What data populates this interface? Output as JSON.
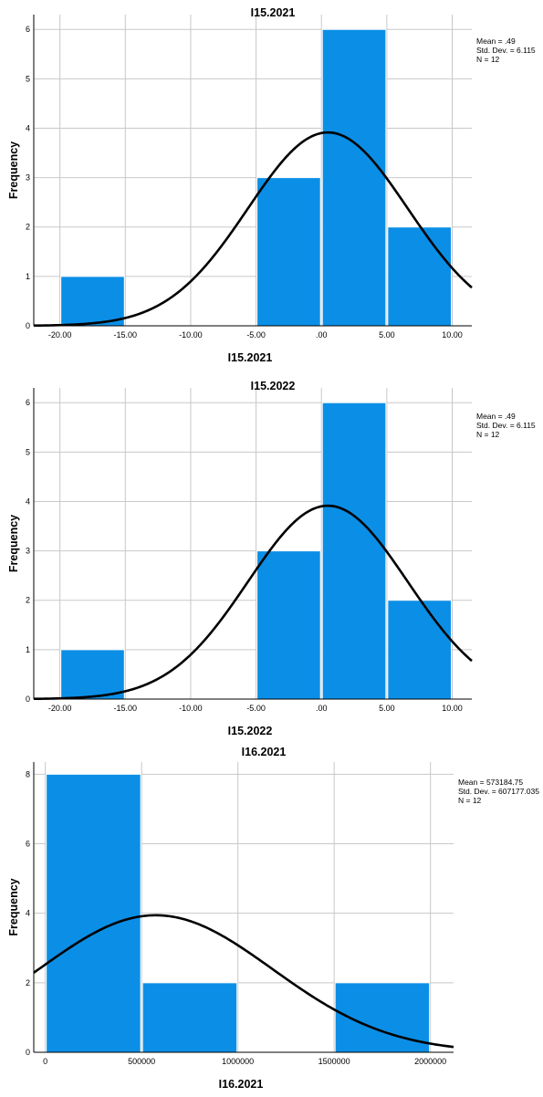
{
  "chart_data": [
    {
      "type": "bar",
      "title": "I15.2021",
      "xlabel": "I15.2021",
      "ylabel": "Frequency",
      "bins": [
        {
          "from": -20,
          "to": -15,
          "count": 1
        },
        {
          "from": -15,
          "to": -10,
          "count": 0
        },
        {
          "from": -10,
          "to": -5,
          "count": 0
        },
        {
          "from": -5,
          "to": 0,
          "count": 3
        },
        {
          "from": 0,
          "to": 5,
          "count": 6
        },
        {
          "from": 5,
          "to": 10,
          "count": 2
        }
      ],
      "xlim": [
        -22,
        11.5
      ],
      "ylim": [
        0,
        6.3
      ],
      "x_ticks": [
        {
          "value": -20,
          "label": "-20.00"
        },
        {
          "value": -15,
          "label": "-15.00"
        },
        {
          "value": -10,
          "label": "-10.00"
        },
        {
          "value": -5,
          "label": "-5.00"
        },
        {
          "value": 0,
          "label": ".00"
        },
        {
          "value": 5,
          "label": "5.00"
        },
        {
          "value": 10,
          "label": "10.00"
        }
      ],
      "y_ticks": [
        0,
        1,
        2,
        3,
        4,
        5,
        6
      ],
      "normal_curve": {
        "mean": 0.49,
        "sd": 6.115,
        "n": 12,
        "bin_width": 5
      },
      "stats": [
        "Mean = .49",
        "Std. Dev. = 6.115",
        "N = 12"
      ],
      "bar_color": "#0b8fe6",
      "grid": true
    },
    {
      "type": "bar",
      "title": "I15.2022",
      "xlabel": "I15.2022",
      "ylabel": "Frequency",
      "bins": [
        {
          "from": -20,
          "to": -15,
          "count": 1
        },
        {
          "from": -15,
          "to": -10,
          "count": 0
        },
        {
          "from": -10,
          "to": -5,
          "count": 0
        },
        {
          "from": -5,
          "to": 0,
          "count": 3
        },
        {
          "from": 0,
          "to": 5,
          "count": 6
        },
        {
          "from": 5,
          "to": 10,
          "count": 2
        }
      ],
      "xlim": [
        -22,
        11.5
      ],
      "ylim": [
        0,
        6.3
      ],
      "x_ticks": [
        {
          "value": -20,
          "label": "-20.00"
        },
        {
          "value": -15,
          "label": "-15.00"
        },
        {
          "value": -10,
          "label": "-10.00"
        },
        {
          "value": -5,
          "label": "-5.00"
        },
        {
          "value": 0,
          "label": ".00"
        },
        {
          "value": 5,
          "label": "5.00"
        },
        {
          "value": 10,
          "label": "10.00"
        }
      ],
      "y_ticks": [
        0,
        1,
        2,
        3,
        4,
        5,
        6
      ],
      "normal_curve": {
        "mean": 0.49,
        "sd": 6.115,
        "n": 12,
        "bin_width": 5
      },
      "stats": [
        "Mean = .49",
        "Std. Dev. = 6.115",
        "N = 12"
      ],
      "bar_color": "#0b8fe6",
      "grid": true
    },
    {
      "type": "bar",
      "title": "I16.2021",
      "xlabel": "I16.2021",
      "ylabel": "Frequency",
      "bins": [
        {
          "from": 0,
          "to": 500000,
          "count": 8
        },
        {
          "from": 500000,
          "to": 1000000,
          "count": 2
        },
        {
          "from": 1000000,
          "to": 1500000,
          "count": 0
        },
        {
          "from": 1500000,
          "to": 2000000,
          "count": 2
        }
      ],
      "xlim": [
        -60000,
        2120000
      ],
      "ylim": [
        0,
        8.35
      ],
      "x_ticks": [
        {
          "value": 0,
          "label": "0"
        },
        {
          "value": 500000,
          "label": "500000"
        },
        {
          "value": 1000000,
          "label": "1000000"
        },
        {
          "value": 1500000,
          "label": "1500000"
        },
        {
          "value": 2000000,
          "label": "2000000"
        }
      ],
      "y_ticks": [
        0,
        2,
        4,
        6,
        8
      ],
      "normal_curve": {
        "mean": 573184.75,
        "sd": 607177.035,
        "n": 12,
        "bin_width": 500000
      },
      "stats": [
        "Mean = 573184.75",
        "Std. Dev. = 607177.035",
        "N = 12"
      ],
      "bar_color": "#0b8fe6",
      "grid": true
    }
  ]
}
